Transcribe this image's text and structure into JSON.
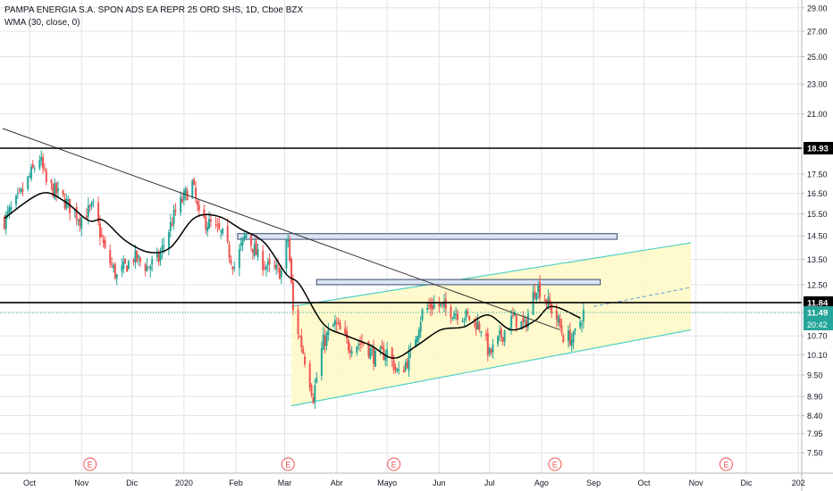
{
  "header": {
    "title": "PAMPA ENERGIA S.A. SPON ADS EA REPR 25 ORD SHS, 1D, Cboe BZX",
    "indicator": "WMA (30, close, 0)"
  },
  "colors": {
    "up": "#26a69a",
    "down": "#ef5350",
    "wma": "#000000",
    "channel_fill": "#fff9c4",
    "channel_line": "#4dd0c4",
    "rect_fill": "#dbe4f3",
    "rect_stroke": "#3c4b6e",
    "grid": "#e1e4e8",
    "last_price": "#26a69a",
    "event": "#ef5350"
  },
  "chart_data": {
    "type": "candlestick",
    "x_ticks": [
      {
        "label": "Oct",
        "date": "2019-10-01"
      },
      {
        "label": "Nov",
        "date": "2019-11-01"
      },
      {
        "label": "Dic",
        "date": "2019-12-01"
      },
      {
        "label": "2020",
        "date": "2020-01-01"
      },
      {
        "label": "Feb",
        "date": "2020-02-01"
      },
      {
        "label": "Mar",
        "date": "2020-03-01"
      },
      {
        "label": "Abr",
        "date": "2020-04-01"
      },
      {
        "label": "Mayo",
        "date": "2020-05-01"
      },
      {
        "label": "Jun",
        "date": "2020-06-01"
      },
      {
        "label": "Jul",
        "date": "2020-07-01"
      },
      {
        "label": "Ago",
        "date": "2020-08-01"
      },
      {
        "label": "Sep",
        "date": "2020-09-01"
      },
      {
        "label": "Oct",
        "date": "2020-10-01"
      },
      {
        "label": "Nov",
        "date": "2020-11-01"
      },
      {
        "label": "Dic",
        "date": "2020-12-01"
      },
      {
        "label": "202",
        "date": "2021-01-01"
      }
    ],
    "y_ticks": [
      "29.00",
      "27.00",
      "25.00",
      "23.00",
      "21.00",
      "18.93",
      "17.50",
      "16.50",
      "15.50",
      "14.50",
      "13.50",
      "12.50",
      "11.84",
      "11.49",
      "10.70",
      "10.10",
      "9.50",
      "8.90",
      "8.40",
      "7.95",
      "7.50"
    ],
    "y_axis": {
      "scale": "log",
      "min": 7.05,
      "max": 29.7
    },
    "price_path": [
      [
        "2019-09-16",
        15.2
      ],
      [
        "2019-09-25",
        16.3
      ],
      [
        "2019-10-07",
        18.4
      ],
      [
        "2019-10-11",
        17.0
      ],
      [
        "2019-10-21",
        16.2
      ],
      [
        "2019-10-31",
        15.3
      ],
      [
        "2019-11-08",
        15.8
      ],
      [
        "2019-11-15",
        13.8
      ],
      [
        "2019-11-22",
        12.8
      ],
      [
        "2019-12-02",
        13.6
      ],
      [
        "2019-12-10",
        13.2
      ],
      [
        "2019-12-17",
        13.5
      ],
      [
        "2019-12-27",
        15.6
      ],
      [
        "2020-01-06",
        17.0
      ],
      [
        "2020-01-10",
        15.3
      ],
      [
        "2020-01-17",
        15.0
      ],
      [
        "2020-01-24",
        14.5
      ],
      [
        "2020-01-31",
        13.2
      ],
      [
        "2020-02-07",
        14.6
      ],
      [
        "2020-02-14",
        13.6
      ],
      [
        "2020-02-21",
        13.1
      ],
      [
        "2020-02-28",
        13.0
      ],
      [
        "2020-03-03",
        14.4
      ],
      [
        "2020-03-06",
        11.5
      ],
      [
        "2020-03-12",
        10.2
      ],
      [
        "2020-03-18",
        8.9
      ],
      [
        "2020-03-24",
        10.5
      ],
      [
        "2020-03-31",
        11.1
      ],
      [
        "2020-04-08",
        10.4
      ],
      [
        "2020-04-17",
        10.5
      ],
      [
        "2020-04-24",
        10.0
      ],
      [
        "2020-05-01",
        10.2
      ],
      [
        "2020-05-08",
        9.5
      ],
      [
        "2020-05-15",
        10.1
      ],
      [
        "2020-05-22",
        11.5
      ],
      [
        "2020-05-29",
        11.8
      ],
      [
        "2020-06-05",
        11.6
      ],
      [
        "2020-06-12",
        11.5
      ],
      [
        "2020-06-19",
        11.3
      ],
      [
        "2020-06-26",
        11.0
      ],
      [
        "2020-07-01",
        10.1
      ],
      [
        "2020-07-08",
        10.7
      ],
      [
        "2020-07-15",
        11.3
      ],
      [
        "2020-07-22",
        11.0
      ],
      [
        "2020-07-29",
        12.5
      ],
      [
        "2020-08-05",
        11.8
      ],
      [
        "2020-08-10",
        11.3
      ],
      [
        "2020-08-14",
        10.7
      ],
      [
        "2020-08-20",
        10.6
      ],
      [
        "2020-08-26",
        11.49
      ]
    ],
    "wma": [
      [
        "2019-09-16",
        15.3
      ],
      [
        "2019-10-08",
        16.5
      ],
      [
        "2019-10-22",
        16.1
      ],
      [
        "2019-11-05",
        15.2
      ],
      [
        "2019-11-14",
        15.2
      ],
      [
        "2019-11-27",
        14.3
      ],
      [
        "2019-12-11",
        13.8
      ],
      [
        "2019-12-24",
        14.0
      ],
      [
        "2020-01-07",
        15.3
      ],
      [
        "2020-01-21",
        15.4
      ],
      [
        "2020-02-04",
        14.8
      ],
      [
        "2020-02-18",
        14.2
      ],
      [
        "2020-03-02",
        12.9
      ],
      [
        "2020-03-10",
        12.5
      ],
      [
        "2020-03-24",
        11.1
      ],
      [
        "2020-04-07",
        10.7
      ],
      [
        "2020-04-21",
        10.4
      ],
      [
        "2020-05-05",
        10.0
      ],
      [
        "2020-05-19",
        10.4
      ],
      [
        "2020-06-02",
        10.9
      ],
      [
        "2020-06-16",
        11.0
      ],
      [
        "2020-06-30",
        11.4
      ],
      [
        "2020-07-14",
        10.9
      ],
      [
        "2020-07-28",
        11.2
      ],
      [
        "2020-08-07",
        11.7
      ],
      [
        "2020-08-24",
        11.3
      ]
    ],
    "horizontal_lines": [
      18.93,
      11.84
    ],
    "last_price": 11.49,
    "trend_line": [
      [
        "2019-09-15",
        20.1
      ],
      [
        "2020-08-12",
        10.9
      ]
    ],
    "resistance_zones": [
      {
        "from": "2020-02-02",
        "to": "2020-09-15",
        "low": 14.35,
        "high": 14.6
      },
      {
        "from": "2020-03-20",
        "to": "2020-09-05",
        "low": 12.5,
        "high": 12.7
      }
    ],
    "channel": {
      "from": "2020-03-05",
      "to": "2020-10-29",
      "upper": [
        11.7,
        14.2
      ],
      "lower": [
        8.65,
        10.9
      ],
      "mid_extension": [
        [
          "2020-09-01",
          11.7
        ],
        [
          "2020-10-29",
          12.4
        ]
      ]
    },
    "events": [
      "2019-11-06",
      "2020-03-03",
      "2020-05-05",
      "2020-08-09",
      "2020-11-19"
    ],
    "countdown": "20:42"
  }
}
